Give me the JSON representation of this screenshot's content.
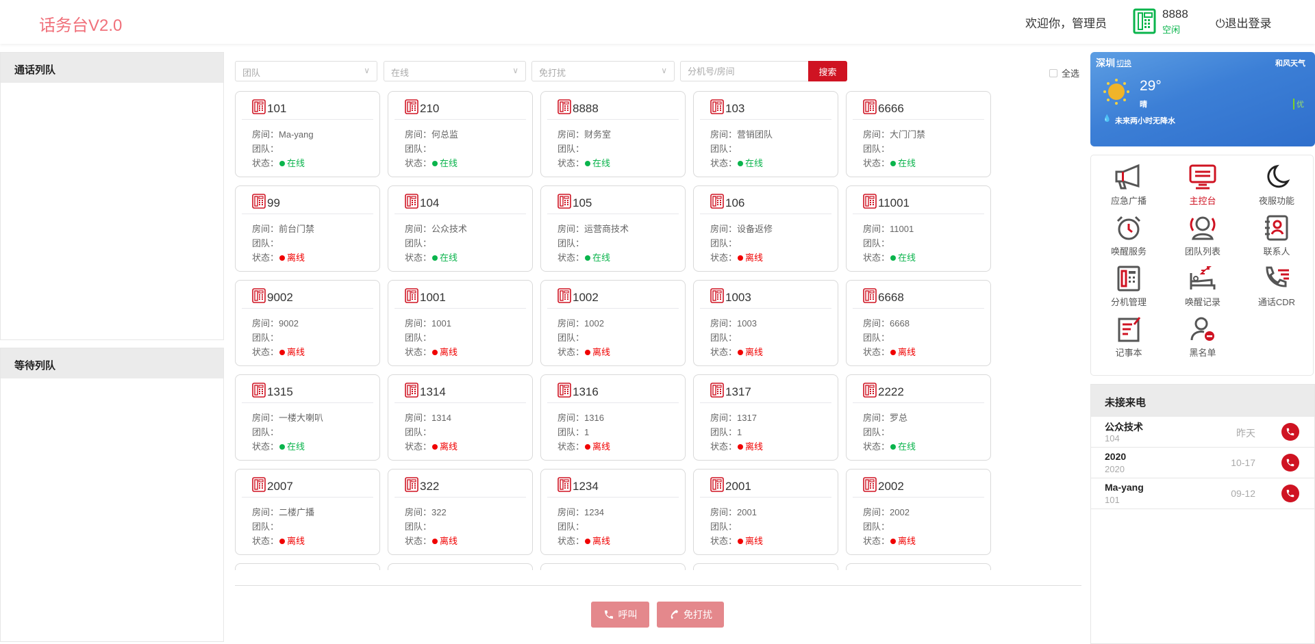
{
  "header": {
    "logo": "话务台V2.0",
    "welcome": "欢迎你，管理员",
    "extension": "8888",
    "extension_status": "空闲",
    "logout": "退出登录",
    "status_color": "#0ab44c"
  },
  "left": {
    "call_queue": "通话列队",
    "wait_queue": "等待列队"
  },
  "filters": {
    "team_placeholder": "团队",
    "online_value": "在线",
    "dnd_value": "免打扰",
    "search_placeholder": "分机号/房间",
    "search_button": "搜索",
    "select_all": "全选"
  },
  "labels": {
    "room": "房间：",
    "team": "团队：",
    "status": "状态："
  },
  "status_text": {
    "online": "在线",
    "offline": "离线"
  },
  "colors": {
    "accent": "#cf1322",
    "online": "#0ab44c",
    "offline": "#f00000"
  },
  "extensions": [
    {
      "num": "101",
      "room": "Ma-yang",
      "team": "",
      "status": "online"
    },
    {
      "num": "210",
      "room": "何总监",
      "team": "",
      "status": "online"
    },
    {
      "num": "8888",
      "room": "财务室",
      "team": "",
      "status": "online"
    },
    {
      "num": "103",
      "room": "营销团队",
      "team": "",
      "status": "online"
    },
    {
      "num": "6666",
      "room": "大门门禁",
      "team": "",
      "status": "online"
    },
    {
      "num": "99",
      "room": "前台门禁",
      "team": "",
      "status": "offline"
    },
    {
      "num": "104",
      "room": "公众技术",
      "team": "",
      "status": "online"
    },
    {
      "num": "105",
      "room": "运营商技术",
      "team": "",
      "status": "online"
    },
    {
      "num": "106",
      "room": "设备返修",
      "team": "",
      "status": "offline"
    },
    {
      "num": "11001",
      "room": "11001",
      "team": "",
      "status": "online"
    },
    {
      "num": "9002",
      "room": "9002",
      "team": "",
      "status": "offline"
    },
    {
      "num": "1001",
      "room": "1001",
      "team": "",
      "status": "offline"
    },
    {
      "num": "1002",
      "room": "1002",
      "team": "",
      "status": "offline"
    },
    {
      "num": "1003",
      "room": "1003",
      "team": "",
      "status": "offline"
    },
    {
      "num": "6668",
      "room": "6668",
      "team": "",
      "status": "offline"
    },
    {
      "num": "1315",
      "room": "一楼大喇叭",
      "team": "",
      "status": "online"
    },
    {
      "num": "1314",
      "room": "1314",
      "team": "",
      "status": "offline"
    },
    {
      "num": "1316",
      "room": "1316",
      "team": "1",
      "status": "offline"
    },
    {
      "num": "1317",
      "room": "1317",
      "team": "1",
      "status": "offline"
    },
    {
      "num": "2222",
      "room": "罗总",
      "team": "",
      "status": "online"
    },
    {
      "num": "2007",
      "room": "二楼广播",
      "team": "",
      "status": "offline"
    },
    {
      "num": "322",
      "room": "322",
      "team": "",
      "status": "offline"
    },
    {
      "num": "1234",
      "room": "1234",
      "team": "",
      "status": "offline"
    },
    {
      "num": "2001",
      "room": "2001",
      "team": "",
      "status": "offline"
    },
    {
      "num": "2002",
      "room": "2002",
      "team": "",
      "status": "offline"
    }
  ],
  "actions": {
    "call": "呼叫",
    "dnd": "免打扰"
  },
  "weather": {
    "city": "深圳",
    "switch": "切换",
    "brand": "和风天气",
    "temp": "29°",
    "condition": "晴",
    "aqi": "优",
    "forecast": "未来两小时无降水"
  },
  "functions": [
    {
      "label": "应急广播",
      "icon": "megaphone-icon"
    },
    {
      "label": "主控台",
      "icon": "console-icon",
      "active": true
    },
    {
      "label": "夜服功能",
      "icon": "moon-icon"
    },
    {
      "label": "唤醒服务",
      "icon": "alarm-clock-icon"
    },
    {
      "label": "团队列表",
      "icon": "team-icon"
    },
    {
      "label": "联系人",
      "icon": "contacts-icon"
    },
    {
      "label": "分机管理",
      "icon": "extension-phone-icon"
    },
    {
      "label": "唤醒记录",
      "icon": "sleep-record-icon"
    },
    {
      "label": "通话CDR",
      "icon": "call-record-icon"
    },
    {
      "label": "记事本",
      "icon": "notepad-icon"
    },
    {
      "label": "黑名单",
      "icon": "blacklist-icon"
    }
  ],
  "missed": {
    "title": "未接来电",
    "items": [
      {
        "name": "公众技术",
        "ext": "104",
        "date": "昨天"
      },
      {
        "name": "2020",
        "ext": "2020",
        "date": "10-17"
      },
      {
        "name": "Ma-yang",
        "ext": "101",
        "date": "09-12"
      }
    ]
  }
}
